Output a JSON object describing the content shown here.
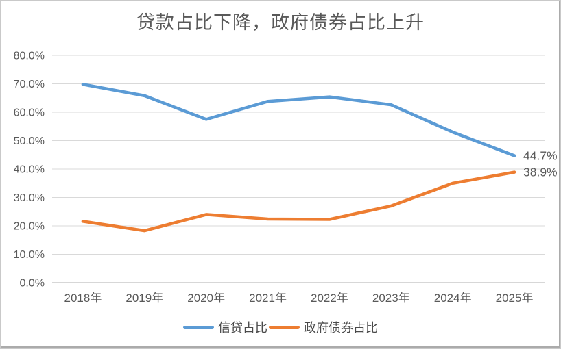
{
  "chart_data": {
    "type": "line",
    "title": "贷款占比下降，政府债券占比上升",
    "categories": [
      "2018年",
      "2019年",
      "2020年",
      "2021年",
      "2022年",
      "2023年",
      "2024年",
      "2025年"
    ],
    "series": [
      {
        "name": "信贷占比",
        "color": "#5B9BD5",
        "values": [
          69.8,
          65.8,
          57.5,
          63.8,
          65.4,
          62.6,
          53.0,
          44.7
        ],
        "end_label": "44.7%"
      },
      {
        "name": "政府债券占比",
        "color": "#ED7D31",
        "values": [
          21.6,
          18.3,
          24.0,
          22.4,
          22.3,
          27.0,
          35.0,
          38.9
        ],
        "end_label": "38.9%"
      }
    ],
    "ylim": [
      0,
      80
    ],
    "ytick_step": 10,
    "ytick_labels": [
      "0.0%",
      "10.0%",
      "20.0%",
      "30.0%",
      "40.0%",
      "50.0%",
      "60.0%",
      "70.0%",
      "80.0%"
    ],
    "grid": true,
    "legend_position": "bottom",
    "theme": {
      "grid_color": "#D9D9D9",
      "axis_color": "#BFBFBF",
      "tick_text_color": "#595959",
      "data_label_color": "#404040",
      "title_color": "#595959",
      "background": "#FFFFFF"
    }
  }
}
